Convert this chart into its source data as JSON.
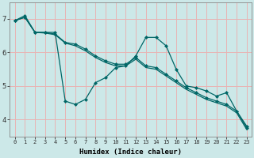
{
  "xlabel": "Humidex (Indice chaleur)",
  "background_color": "#cce8e8",
  "grid_color": "#e8b4b4",
  "line_color": "#006666",
  "xlim": [
    -0.5,
    23.5
  ],
  "ylim": [
    3.5,
    7.5
  ],
  "yticks": [
    4,
    5,
    6,
    7
  ],
  "xticks": [
    0,
    1,
    2,
    3,
    4,
    5,
    6,
    7,
    8,
    9,
    10,
    11,
    12,
    13,
    14,
    15,
    16,
    17,
    18,
    19,
    20,
    21,
    22,
    23
  ],
  "series1": [
    6.95,
    7.1,
    6.6,
    6.6,
    6.6,
    4.55,
    4.45,
    4.6,
    5.1,
    5.25,
    5.55,
    5.6,
    5.9,
    6.45,
    6.45,
    6.2,
    5.5,
    5.0,
    4.95,
    4.85,
    4.7,
    4.8,
    4.25,
    3.8
  ],
  "series2": [
    6.95,
    7.05,
    6.6,
    6.6,
    6.55,
    6.3,
    6.25,
    6.1,
    5.9,
    5.75,
    5.65,
    5.65,
    5.85,
    5.6,
    5.55,
    5.35,
    5.15,
    4.95,
    4.8,
    4.65,
    4.55,
    4.45,
    4.25,
    3.75
  ],
  "series3": [
    6.95,
    7.05,
    6.6,
    6.58,
    6.53,
    6.28,
    6.2,
    6.05,
    5.85,
    5.7,
    5.6,
    5.6,
    5.8,
    5.55,
    5.5,
    5.3,
    5.1,
    4.9,
    4.75,
    4.6,
    4.5,
    4.4,
    4.2,
    3.7
  ],
  "markersize": 2.5,
  "linewidth": 0.9
}
